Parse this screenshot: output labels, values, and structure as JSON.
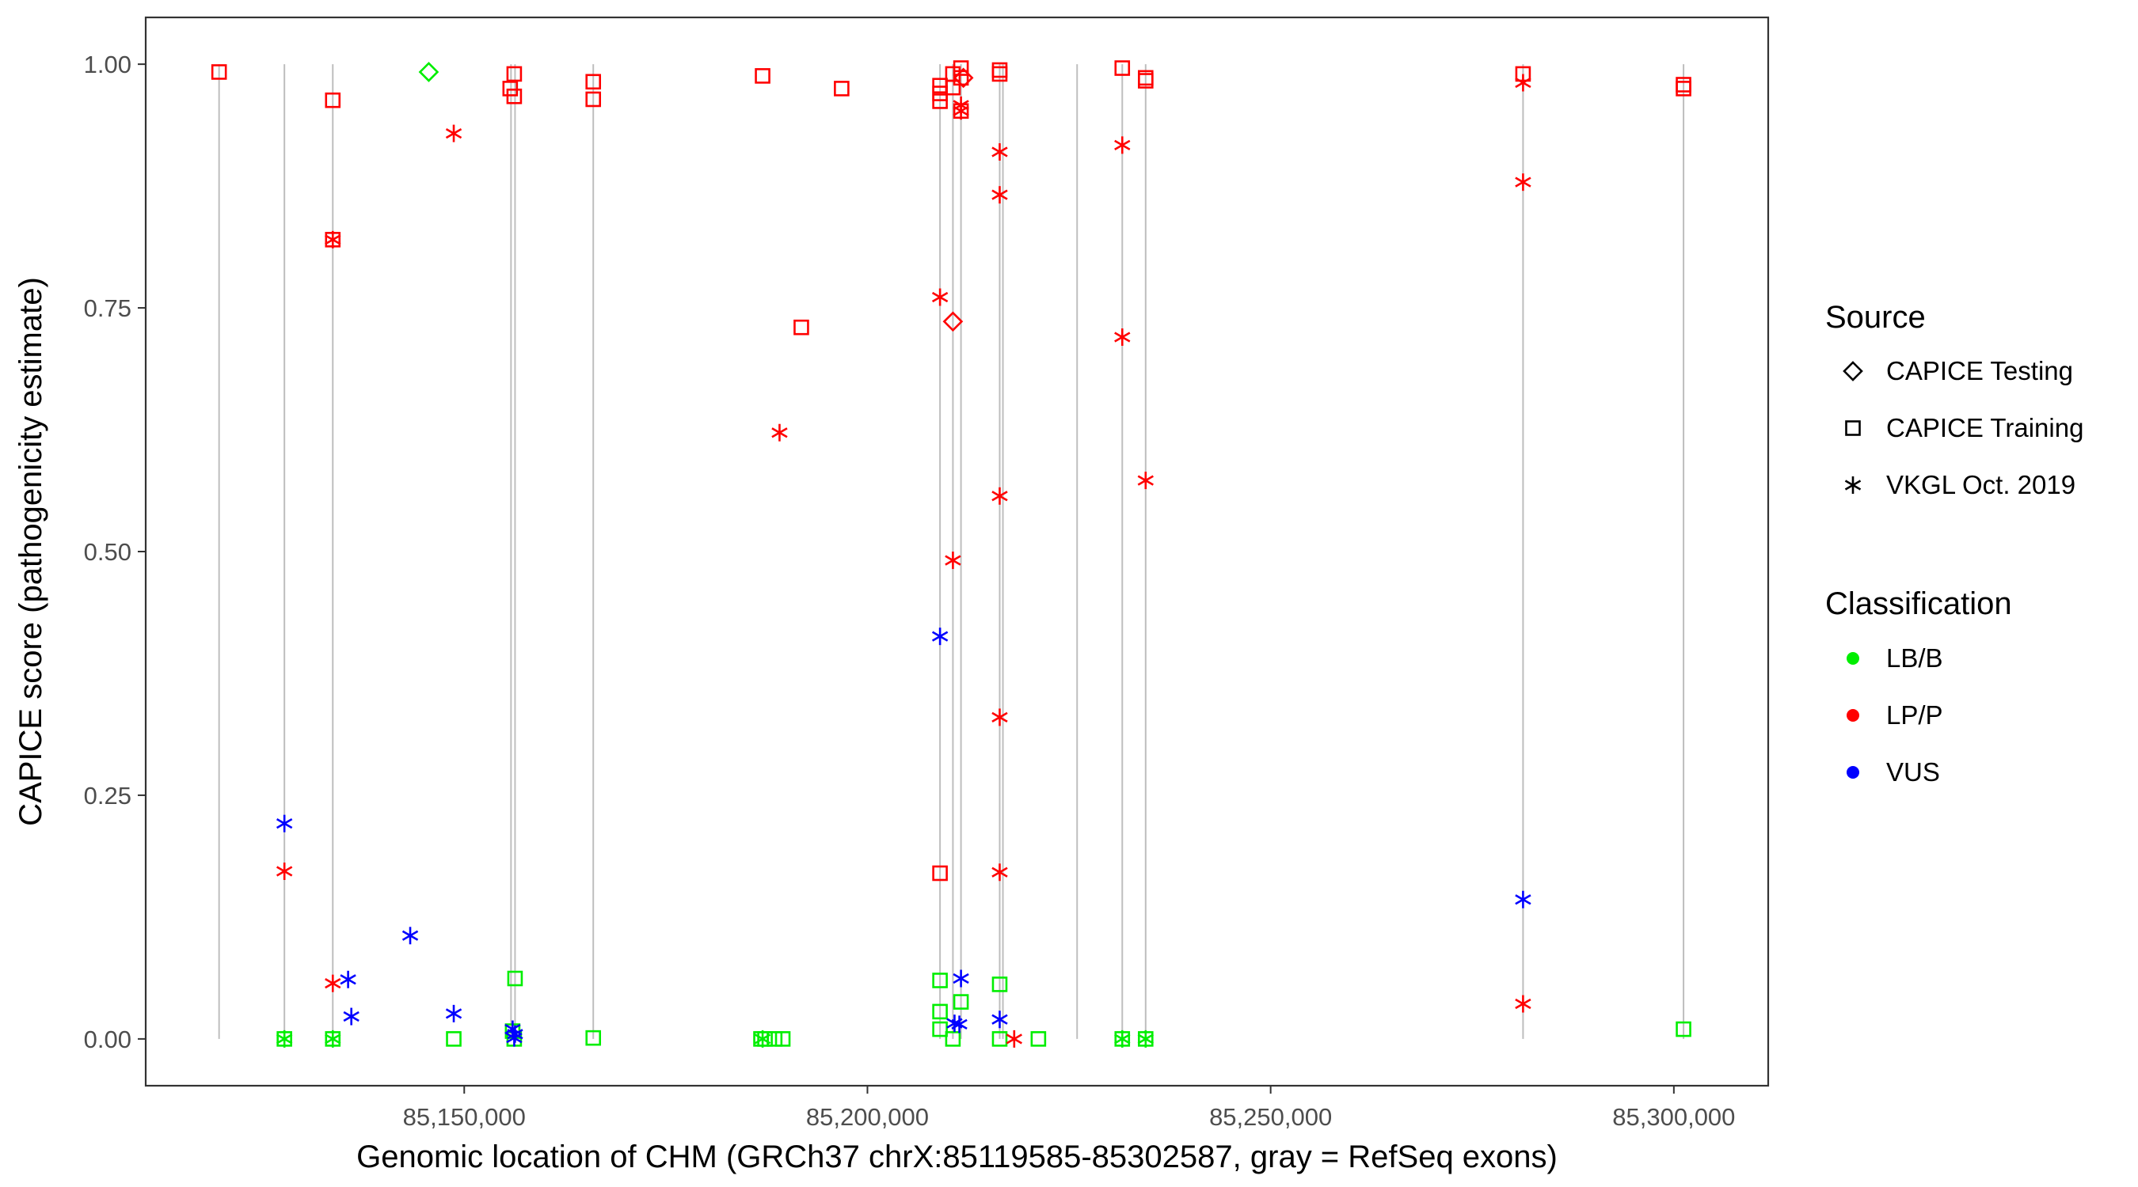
{
  "colors": {
    "LB/B": "#00ee00",
    "LP/P": "#ff0000",
    "VUS": "#0000ff",
    "exon": "#bebebe",
    "panel_border": "#333333"
  },
  "chart_data": {
    "type": "scatter",
    "title": "",
    "xlabel": "Genomic location of CHM (GRCh37 chrX:85119585-85302587, gray = RefSeq exons)",
    "ylabel": "CAPICE score (pathogenicity estimate)",
    "xlim": [
      85110500,
      85311700
    ],
    "ylim": [
      -0.048,
      1.048
    ],
    "x_ticks": [
      85150000,
      85200000,
      85250000,
      85300000
    ],
    "x_tick_labels": [
      "85,150,000",
      "85,200,000",
      "85,250,000",
      "85,300,000"
    ],
    "y_ticks": [
      0,
      0.25,
      0.5,
      0.75,
      1
    ],
    "y_tick_labels": [
      "0.00",
      "0.25",
      "0.50",
      "0.75",
      "1.00"
    ],
    "grid": false,
    "exons": [
      85119600,
      85127700,
      85133700,
      85155800,
      85156300,
      85166000,
      85209000,
      85210600,
      85211600,
      85216400,
      85216800,
      85226000,
      85231600,
      85234500,
      85281300,
      85301200
    ],
    "legend_placement": "right",
    "legend": {
      "source": {
        "title": "Source",
        "items": [
          "CAPICE Testing",
          "CAPICE Training",
          "VKGL Oct. 2019"
        ]
      },
      "classification": {
        "title": "Classification",
        "items": [
          "LB/B",
          "LP/P",
          "VUS"
        ]
      }
    },
    "points": [
      {
        "x": 85119600,
        "y": 0.992,
        "source": "CAPICE Training",
        "class": "LP/P"
      },
      {
        "x": 85133700,
        "y": 0.963,
        "source": "CAPICE Training",
        "class": "LP/P"
      },
      {
        "x": 85133700,
        "y": 0.82,
        "source": "CAPICE Training",
        "class": "LP/P"
      },
      {
        "x": 85155700,
        "y": 0.975,
        "source": "CAPICE Training",
        "class": "LP/P"
      },
      {
        "x": 85156200,
        "y": 0.99,
        "source": "CAPICE Training",
        "class": "LP/P"
      },
      {
        "x": 85156200,
        "y": 0.967,
        "source": "CAPICE Training",
        "class": "LP/P"
      },
      {
        "x": 85166000,
        "y": 0.982,
        "source": "CAPICE Training",
        "class": "LP/P"
      },
      {
        "x": 85166000,
        "y": 0.964,
        "source": "CAPICE Training",
        "class": "LP/P"
      },
      {
        "x": 85187000,
        "y": 0.988,
        "source": "CAPICE Training",
        "class": "LP/P"
      },
      {
        "x": 85191800,
        "y": 0.73,
        "source": "CAPICE Training",
        "class": "LP/P"
      },
      {
        "x": 85196800,
        "y": 0.975,
        "source": "CAPICE Training",
        "class": "LP/P"
      },
      {
        "x": 85209000,
        "y": 0.978,
        "source": "CAPICE Training",
        "class": "LP/P"
      },
      {
        "x": 85209000,
        "y": 0.97,
        "source": "CAPICE Training",
        "class": "LP/P"
      },
      {
        "x": 85209000,
        "y": 0.962,
        "source": "CAPICE Training",
        "class": "LP/P"
      },
      {
        "x": 85209000,
        "y": 0.17,
        "source": "CAPICE Training",
        "class": "LP/P"
      },
      {
        "x": 85210600,
        "y": 0.99,
        "source": "CAPICE Training",
        "class": "LP/P"
      },
      {
        "x": 85210600,
        "y": 0.976,
        "source": "CAPICE Training",
        "class": "LP/P"
      },
      {
        "x": 85211600,
        "y": 0.996,
        "source": "CAPICE Training",
        "class": "LP/P"
      },
      {
        "x": 85211600,
        "y": 0.986,
        "source": "CAPICE Training",
        "class": "LP/P"
      },
      {
        "x": 85211600,
        "y": 0.952,
        "source": "CAPICE Training",
        "class": "LP/P"
      },
      {
        "x": 85216400,
        "y": 0.994,
        "source": "CAPICE Training",
        "class": "LP/P"
      },
      {
        "x": 85216400,
        "y": 0.99,
        "source": "CAPICE Training",
        "class": "LP/P"
      },
      {
        "x": 85231600,
        "y": 0.996,
        "source": "CAPICE Training",
        "class": "LP/P"
      },
      {
        "x": 85234500,
        "y": 0.986,
        "source": "CAPICE Training",
        "class": "LP/P"
      },
      {
        "x": 85234500,
        "y": 0.983,
        "source": "CAPICE Training",
        "class": "LP/P"
      },
      {
        "x": 85281300,
        "y": 0.99,
        "source": "CAPICE Training",
        "class": "LP/P"
      },
      {
        "x": 85301200,
        "y": 0.979,
        "source": "CAPICE Training",
        "class": "LP/P"
      },
      {
        "x": 85301200,
        "y": 0.975,
        "source": "CAPICE Training",
        "class": "LP/P"
      },
      {
        "x": 85127700,
        "y": 0.0,
        "source": "CAPICE Training",
        "class": "LB/B"
      },
      {
        "x": 85133700,
        "y": 0.0,
        "source": "CAPICE Training",
        "class": "LB/B"
      },
      {
        "x": 85148700,
        "y": 0.0,
        "source": "CAPICE Training",
        "class": "LB/B"
      },
      {
        "x": 85156300,
        "y": 0.062,
        "source": "CAPICE Training",
        "class": "LB/B"
      },
      {
        "x": 85156000,
        "y": 0.008,
        "source": "CAPICE Training",
        "class": "LB/B"
      },
      {
        "x": 85156200,
        "y": 0.0,
        "source": "CAPICE Training",
        "class": "LB/B"
      },
      {
        "x": 85166000,
        "y": 0.001,
        "source": "CAPICE Training",
        "class": "LB/B"
      },
      {
        "x": 85186800,
        "y": 0.0,
        "source": "CAPICE Training",
        "class": "LB/B"
      },
      {
        "x": 85187300,
        "y": 0.0,
        "source": "CAPICE Training",
        "class": "LB/B"
      },
      {
        "x": 85188500,
        "y": 0.0,
        "source": "CAPICE Training",
        "class": "LB/B"
      },
      {
        "x": 85189500,
        "y": 0.0,
        "source": "CAPICE Training",
        "class": "LB/B"
      },
      {
        "x": 85209000,
        "y": 0.06,
        "source": "CAPICE Training",
        "class": "LB/B"
      },
      {
        "x": 85209000,
        "y": 0.028,
        "source": "CAPICE Training",
        "class": "LB/B"
      },
      {
        "x": 85209000,
        "y": 0.01,
        "source": "CAPICE Training",
        "class": "LB/B"
      },
      {
        "x": 85210600,
        "y": 0.0,
        "source": "CAPICE Training",
        "class": "LB/B"
      },
      {
        "x": 85211600,
        "y": 0.038,
        "source": "CAPICE Training",
        "class": "LB/B"
      },
      {
        "x": 85216400,
        "y": 0.056,
        "source": "CAPICE Training",
        "class": "LB/B"
      },
      {
        "x": 85216400,
        "y": 0.0,
        "source": "CAPICE Training",
        "class": "LB/B"
      },
      {
        "x": 85221200,
        "y": 0.0,
        "source": "CAPICE Training",
        "class": "LB/B"
      },
      {
        "x": 85231600,
        "y": 0.0,
        "source": "CAPICE Training",
        "class": "LB/B"
      },
      {
        "x": 85234500,
        "y": 0.0,
        "source": "CAPICE Training",
        "class": "LB/B"
      },
      {
        "x": 85301200,
        "y": 0.01,
        "source": "CAPICE Training",
        "class": "LB/B"
      },
      {
        "x": 85145600,
        "y": 0.992,
        "source": "CAPICE Testing",
        "class": "LB/B"
      },
      {
        "x": 85210600,
        "y": 0.736,
        "source": "CAPICE Testing",
        "class": "LP/P"
      },
      {
        "x": 85211900,
        "y": 0.986,
        "source": "CAPICE Testing",
        "class": "LP/P"
      },
      {
        "x": 85148700,
        "y": 0.929,
        "source": "VKGL Oct. 2019",
        "class": "LP/P"
      },
      {
        "x": 85133700,
        "y": 0.82,
        "source": "VKGL Oct. 2019",
        "class": "LP/P"
      },
      {
        "x": 85127700,
        "y": 0.172,
        "source": "VKGL Oct. 2019",
        "class": "LP/P"
      },
      {
        "x": 85133700,
        "y": 0.057,
        "source": "VKGL Oct. 2019",
        "class": "LP/P"
      },
      {
        "x": 85189100,
        "y": 0.622,
        "source": "VKGL Oct. 2019",
        "class": "LP/P"
      },
      {
        "x": 85209000,
        "y": 0.761,
        "source": "VKGL Oct. 2019",
        "class": "LP/P"
      },
      {
        "x": 85210600,
        "y": 0.491,
        "source": "VKGL Oct. 2019",
        "class": "LP/P"
      },
      {
        "x": 85211600,
        "y": 0.958,
        "source": "VKGL Oct. 2019",
        "class": "LP/P"
      },
      {
        "x": 85211600,
        "y": 0.952,
        "source": "VKGL Oct. 2019",
        "class": "LP/P"
      },
      {
        "x": 85216400,
        "y": 0.91,
        "source": "VKGL Oct. 2019",
        "class": "LP/P"
      },
      {
        "x": 85216400,
        "y": 0.866,
        "source": "VKGL Oct. 2019",
        "class": "LP/P"
      },
      {
        "x": 85216400,
        "y": 0.557,
        "source": "VKGL Oct. 2019",
        "class": "LP/P"
      },
      {
        "x": 85216400,
        "y": 0.33,
        "source": "VKGL Oct. 2019",
        "class": "LP/P"
      },
      {
        "x": 85216400,
        "y": 0.171,
        "source": "VKGL Oct. 2019",
        "class": "LP/P"
      },
      {
        "x": 85218200,
        "y": 0.0,
        "source": "VKGL Oct. 2019",
        "class": "LP/P"
      },
      {
        "x": 85231600,
        "y": 0.917,
        "source": "VKGL Oct. 2019",
        "class": "LP/P"
      },
      {
        "x": 85231600,
        "y": 0.72,
        "source": "VKGL Oct. 2019",
        "class": "LP/P"
      },
      {
        "x": 85234500,
        "y": 0.573,
        "source": "VKGL Oct. 2019",
        "class": "LP/P"
      },
      {
        "x": 85281300,
        "y": 0.981,
        "source": "VKGL Oct. 2019",
        "class": "LP/P"
      },
      {
        "x": 85281300,
        "y": 0.879,
        "source": "VKGL Oct. 2019",
        "class": "LP/P"
      },
      {
        "x": 85281300,
        "y": 0.036,
        "source": "VKGL Oct. 2019",
        "class": "LP/P"
      },
      {
        "x": 85127700,
        "y": 0.221,
        "source": "VKGL Oct. 2019",
        "class": "VUS"
      },
      {
        "x": 85135600,
        "y": 0.061,
        "source": "VKGL Oct. 2019",
        "class": "VUS"
      },
      {
        "x": 85136000,
        "y": 0.023,
        "source": "VKGL Oct. 2019",
        "class": "VUS"
      },
      {
        "x": 85143300,
        "y": 0.106,
        "source": "VKGL Oct. 2019",
        "class": "VUS"
      },
      {
        "x": 85148700,
        "y": 0.026,
        "source": "VKGL Oct. 2019",
        "class": "VUS"
      },
      {
        "x": 85156000,
        "y": 0.01,
        "source": "VKGL Oct. 2019",
        "class": "VUS"
      },
      {
        "x": 85156300,
        "y": 0.005,
        "source": "VKGL Oct. 2019",
        "class": "VUS"
      },
      {
        "x": 85156200,
        "y": 0.001,
        "source": "VKGL Oct. 2019",
        "class": "VUS"
      },
      {
        "x": 85209000,
        "y": 0.413,
        "source": "VKGL Oct. 2019",
        "class": "VUS"
      },
      {
        "x": 85211600,
        "y": 0.062,
        "source": "VKGL Oct. 2019",
        "class": "VUS"
      },
      {
        "x": 85210800,
        "y": 0.016,
        "source": "VKGL Oct. 2019",
        "class": "VUS"
      },
      {
        "x": 85211400,
        "y": 0.015,
        "source": "VKGL Oct. 2019",
        "class": "VUS"
      },
      {
        "x": 85216400,
        "y": 0.02,
        "source": "VKGL Oct. 2019",
        "class": "VUS"
      },
      {
        "x": 85281300,
        "y": 0.143,
        "source": "VKGL Oct. 2019",
        "class": "VUS"
      },
      {
        "x": 85127700,
        "y": 0.0,
        "source": "VKGL Oct. 2019",
        "class": "LB/B"
      },
      {
        "x": 85133700,
        "y": 0.0,
        "source": "VKGL Oct. 2019",
        "class": "LB/B"
      },
      {
        "x": 85187000,
        "y": 0.0,
        "source": "VKGL Oct. 2019",
        "class": "LB/B"
      },
      {
        "x": 85231600,
        "y": 0.0,
        "source": "VKGL Oct. 2019",
        "class": "LB/B"
      },
      {
        "x": 85234500,
        "y": 0.0,
        "source": "VKGL Oct. 2019",
        "class": "LB/B"
      }
    ]
  }
}
